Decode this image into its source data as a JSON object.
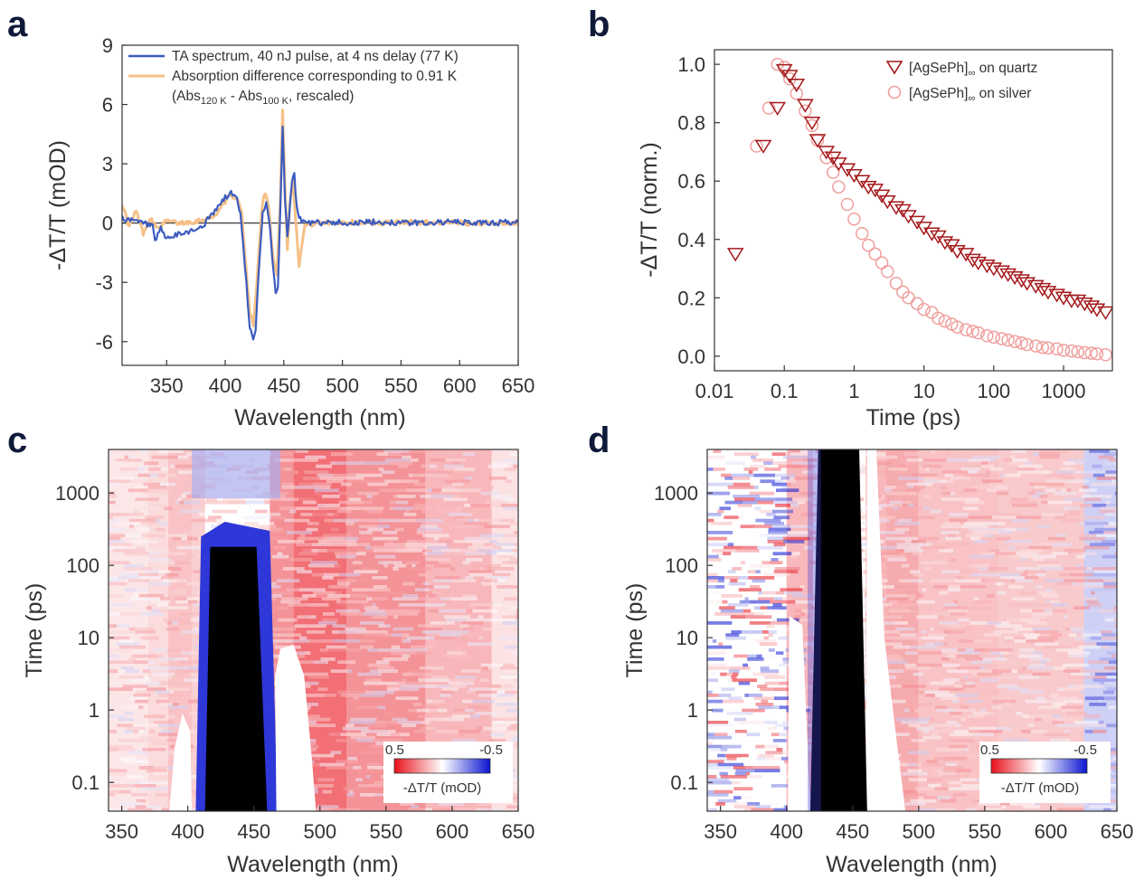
{
  "panels": {
    "a": {
      "letter": "a"
    },
    "b": {
      "letter": "b"
    },
    "c": {
      "letter": "c"
    },
    "d": {
      "letter": "d"
    }
  },
  "colors": {
    "ta_line": "#3b5bc0",
    "abs_line": "#f5c187",
    "quartz_marker": "#a4181b",
    "silver_marker": "#ef9f9d",
    "heat_pos": "#e8101a",
    "heat_neg": "#0a14d0",
    "heat_sat": "#000000"
  },
  "chart_data": [
    {
      "id": "a",
      "type": "line",
      "xlabel": "Wavelength (nm)",
      "ylabel": "-ΔT/T (mOD)",
      "xlim": [
        312,
        650
      ],
      "ylim": [
        -7.2,
        9
      ],
      "xticks": [
        350,
        400,
        450,
        500,
        550,
        600,
        650
      ],
      "yticks": [
        9,
        6,
        3,
        0,
        -3,
        -6
      ],
      "zero_line": true,
      "legend_position": "top-right",
      "series": [
        {
          "name": "TA spectrum, 40 nJ pulse, at 4 ns delay (77 K)",
          "x": [
            312,
            320,
            330,
            338,
            340,
            345,
            350,
            360,
            370,
            380,
            390,
            395,
            400,
            405,
            410,
            413,
            418,
            421,
            424,
            426,
            429,
            432,
            435,
            437,
            440,
            443,
            445,
            447,
            449,
            451,
            453,
            455,
            457,
            459,
            461,
            464,
            468,
            475,
            490,
            510,
            530,
            560,
            590,
            620,
            650
          ],
          "y": [
            0.3,
            0.1,
            0.0,
            -0.2,
            -1.0,
            -0.3,
            -0.8,
            -0.6,
            -0.4,
            -0.2,
            0.5,
            0.9,
            1.3,
            1.5,
            1.3,
            0.4,
            -3.0,
            -5.3,
            -6.0,
            -5.5,
            -2.0,
            0.5,
            1.0,
            0.4,
            -1.6,
            -3.6,
            -3.3,
            0.8,
            4.8,
            1.2,
            -0.6,
            0.6,
            2.2,
            2.4,
            0.8,
            0.2,
            0.0,
            0.0,
            0.05,
            0.0,
            0.05,
            0.0,
            0.05,
            0.0,
            0.05
          ]
        },
        {
          "name": "Absorption difference corresponding to 0.91 K",
          "name_line2": "(Abs",
          "name_sub1": "120 K",
          "name_mid": " - Abs",
          "name_sub2": "100 K",
          "name_end": ", rescaled)",
          "x": [
            312,
            318,
            324,
            330,
            336,
            342,
            350,
            360,
            375,
            390,
            400,
            405,
            410,
            414,
            418,
            421,
            424,
            427,
            431,
            434,
            437,
            441,
            444,
            447,
            449,
            451,
            453,
            455,
            458,
            460,
            463,
            468,
            480,
            500,
            530,
            560,
            600,
            650
          ],
          "y": [
            1.0,
            -0.2,
            0.6,
            -0.5,
            0.3,
            -0.3,
            0.1,
            0.0,
            0.1,
            0.3,
            1.1,
            1.4,
            1.3,
            0.5,
            -2.5,
            -4.6,
            -5.1,
            -3.0,
            0.6,
            1.6,
            0.8,
            -1.8,
            -2.6,
            1.0,
            5.7,
            2.0,
            -1.4,
            1.0,
            2.2,
            0.3,
            -2.1,
            -0.1,
            0.0,
            0.05,
            0.0,
            0.05,
            0.0,
            0.0
          ]
        }
      ]
    },
    {
      "id": "b",
      "type": "scatter",
      "xlabel": "Time (ps)",
      "ylabel": "-ΔT/T (norm.)",
      "xscale": "log",
      "xlim": [
        0.01,
        5000
      ],
      "ylim": [
        -0.05,
        1.05
      ],
      "xticks": [
        0.01,
        0.1,
        1,
        10,
        100,
        1000
      ],
      "xtick_labels": [
        "0.01",
        "0.1",
        "1",
        "10",
        "100",
        "1000"
      ],
      "yticks": [
        0.0,
        0.2,
        0.4,
        0.6,
        0.8,
        1.0
      ],
      "ytick_labels": [
        "0.0",
        "0.2",
        "0.4",
        "0.6",
        "0.8",
        "1.0"
      ],
      "legend_position": "top-right",
      "series": [
        {
          "name_main": "[AgSePh]",
          "name_sub": "∞",
          "name_end": " on quartz",
          "marker": "triangle-down",
          "x": [
            0.02,
            0.05,
            0.08,
            0.1,
            0.12,
            0.15,
            0.2,
            0.25,
            0.3,
            0.4,
            0.5,
            0.6,
            0.8,
            1,
            1.3,
            1.6,
            2,
            2.5,
            3,
            4,
            5,
            6,
            8,
            10,
            13,
            16,
            20,
            25,
            30,
            40,
            50,
            60,
            80,
            100,
            130,
            160,
            200,
            250,
            300,
            400,
            500,
            600,
            800,
            1000,
            1300,
            1600,
            2000,
            2500,
            3000,
            4000
          ],
          "y": [
            0.35,
            0.72,
            0.85,
            0.98,
            0.96,
            0.93,
            0.86,
            0.8,
            0.74,
            0.7,
            0.68,
            0.66,
            0.64,
            0.62,
            0.6,
            0.58,
            0.57,
            0.55,
            0.53,
            0.51,
            0.5,
            0.48,
            0.46,
            0.44,
            0.42,
            0.41,
            0.39,
            0.38,
            0.36,
            0.35,
            0.33,
            0.32,
            0.31,
            0.3,
            0.29,
            0.28,
            0.27,
            0.26,
            0.25,
            0.24,
            0.23,
            0.22,
            0.21,
            0.2,
            0.19,
            0.19,
            0.18,
            0.17,
            0.16,
            0.15
          ]
        },
        {
          "name_main": "[AgSePh]",
          "name_sub": "∞",
          "name_end": " on silver",
          "marker": "circle",
          "x": [
            0.04,
            0.06,
            0.08,
            0.1,
            0.12,
            0.15,
            0.2,
            0.25,
            0.3,
            0.4,
            0.5,
            0.6,
            0.8,
            1,
            1.3,
            1.6,
            2,
            2.5,
            3,
            4,
            5,
            6,
            8,
            10,
            13,
            16,
            20,
            25,
            30,
            40,
            50,
            60,
            80,
            100,
            130,
            160,
            200,
            250,
            300,
            400,
            500,
            600,
            800,
            1000,
            1300,
            1600,
            2000,
            2500,
            3000,
            4000
          ],
          "y": [
            0.72,
            0.85,
            1.0,
            0.99,
            0.95,
            0.9,
            0.84,
            0.79,
            0.74,
            0.68,
            0.63,
            0.58,
            0.52,
            0.47,
            0.42,
            0.38,
            0.35,
            0.32,
            0.29,
            0.25,
            0.22,
            0.2,
            0.18,
            0.16,
            0.15,
            0.13,
            0.12,
            0.11,
            0.1,
            0.09,
            0.085,
            0.08,
            0.07,
            0.065,
            0.06,
            0.055,
            0.05,
            0.045,
            0.04,
            0.035,
            0.03,
            0.028,
            0.025,
            0.02,
            0.018,
            0.015,
            0.012,
            0.01,
            0.008,
            0.005
          ]
        }
      ]
    },
    {
      "id": "c",
      "type": "heatmap",
      "xlabel": "Wavelength (nm)",
      "ylabel": "Time (ps)",
      "xlim": [
        340,
        650
      ],
      "yscale": "log",
      "ylim": [
        0.04,
        4000
      ],
      "xticks": [
        350,
        400,
        450,
        500,
        550,
        600,
        650
      ],
      "yticks": [
        0.1,
        1,
        10,
        100,
        1000
      ],
      "ytick_labels": [
        "0.1",
        "1",
        "10",
        "100",
        "1000"
      ],
      "colorbar": {
        "min_label": "0.5",
        "max_label": "-0.5",
        "label": "-ΔT/T (mOD)",
        "position": "bottom-right"
      },
      "regions": [
        {
          "kind": "background-positive",
          "x": [
            340,
            650
          ],
          "t": [
            0.04,
            4000
          ],
          "level": 0.18
        },
        {
          "kind": "positive-band",
          "x": [
            462,
            630
          ],
          "t": [
            0.3,
            400
          ],
          "level": 0.55
        },
        {
          "kind": "saturated-negative",
          "x": [
            413,
            458
          ],
          "t": [
            0.04,
            200
          ],
          "edges": "slanted"
        },
        {
          "kind": "negative",
          "x": [
            405,
            468
          ],
          "t": [
            0.04,
            1500
          ],
          "level": -0.7
        },
        {
          "kind": "clipped-positive",
          "x": [
            466,
            495
          ],
          "t": [
            0.04,
            8
          ]
        },
        {
          "kind": "clipped-positive",
          "x": [
            385,
            402
          ],
          "t": [
            0.04,
            0.9
          ]
        }
      ]
    },
    {
      "id": "d",
      "type": "heatmap",
      "xlabel": "Wavelength (nm)",
      "ylabel": "Time (ps)",
      "xlim": [
        340,
        650
      ],
      "yscale": "log",
      "ylim": [
        0.04,
        4000
      ],
      "xticks": [
        350,
        400,
        450,
        500,
        550,
        600,
        650
      ],
      "yticks": [
        0.1,
        1,
        10,
        100,
        1000
      ],
      "ytick_labels": [
        "0.1",
        "1",
        "10",
        "100",
        "1000"
      ],
      "colorbar": {
        "min_label": "0.5",
        "max_label": "-0.5",
        "label": "-ΔT/T (mOD)",
        "position": "bottom-right"
      },
      "regions": [
        {
          "kind": "noisy-mixed",
          "x": [
            340,
            400
          ],
          "t": [
            0.04,
            4000
          ],
          "level": 0.0
        },
        {
          "kind": "background-positive",
          "x": [
            400,
            650
          ],
          "t": [
            0.04,
            4000
          ],
          "level": 0.25
        },
        {
          "kind": "noisy-negative",
          "x": [
            625,
            650
          ],
          "t": [
            0.04,
            4000
          ],
          "level": -0.4
        },
        {
          "kind": "saturated-negative",
          "x": [
            420,
            460
          ],
          "t": [
            0.04,
            4000
          ],
          "edges": "slanted"
        },
        {
          "kind": "clipped-positive",
          "x": [
            400,
            420
          ],
          "t": [
            0.04,
            20
          ]
        },
        {
          "kind": "clipped-positive",
          "x": [
            462,
            490
          ],
          "t": [
            0.04,
            4000
          ]
        }
      ]
    }
  ]
}
